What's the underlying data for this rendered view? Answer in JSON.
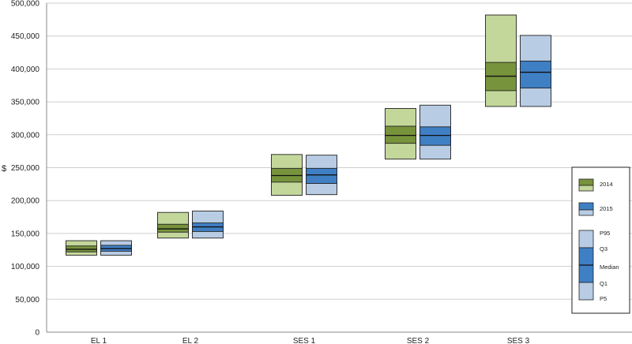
{
  "chart_data": {
    "type": "box",
    "ylabel": "$",
    "ylim": [
      0,
      500000
    ],
    "yticks": [
      "0",
      "50,000",
      "100,000",
      "150,000",
      "200,000",
      "250,000",
      "300,000",
      "350,000",
      "400,000",
      "450,000",
      "500,000"
    ],
    "ytick_values": [
      0,
      50000,
      100000,
      150000,
      200000,
      250000,
      300000,
      350000,
      400000,
      450000,
      500000
    ],
    "grid": true,
    "legend_position": "right",
    "categories": [
      "EL 1",
      "EL 2",
      "SES 1",
      "SES 2",
      "SES 3"
    ],
    "series": [
      {
        "name": "2014",
        "colors": {
          "outer": "#c4d79b",
          "inner": "#77933c"
        },
        "boxes": [
          {
            "p5": 117000,
            "q1": 122000,
            "median": 126000,
            "q3": 131000,
            "p95": 139000
          },
          {
            "p5": 143000,
            "q1": 152000,
            "median": 157000,
            "q3": 164000,
            "p95": 182000
          },
          {
            "p5": 208000,
            "q1": 228000,
            "median": 238000,
            "q3": 249000,
            "p95": 270000
          },
          {
            "p5": 263000,
            "q1": 287000,
            "median": 299000,
            "q3": 313000,
            "p95": 340000
          },
          {
            "p5": 343000,
            "q1": 367000,
            "median": 389000,
            "q3": 410000,
            "p95": 482000
          }
        ]
      },
      {
        "name": "2015",
        "colors": {
          "outer": "#b8cce4",
          "inner": "#3f7fc4"
        },
        "boxes": [
          {
            "p5": 117000,
            "q1": 123000,
            "median": 127000,
            "q3": 132000,
            "p95": 139000
          },
          {
            "p5": 143000,
            "q1": 153000,
            "median": 160000,
            "q3": 166000,
            "p95": 184000
          },
          {
            "p5": 209000,
            "q1": 226000,
            "median": 239000,
            "q3": 249000,
            "p95": 269000
          },
          {
            "p5": 263000,
            "q1": 284000,
            "median": 299000,
            "q3": 312000,
            "p95": 345000
          },
          {
            "p5": 343000,
            "q1": 371000,
            "median": 395000,
            "q3": 412000,
            "p95": 451000
          }
        ]
      }
    ],
    "legend": {
      "series_labels": [
        "2014",
        "2015"
      ],
      "stat_labels": [
        "P95",
        "Q3",
        "Median",
        "Q1",
        "P5"
      ]
    }
  }
}
